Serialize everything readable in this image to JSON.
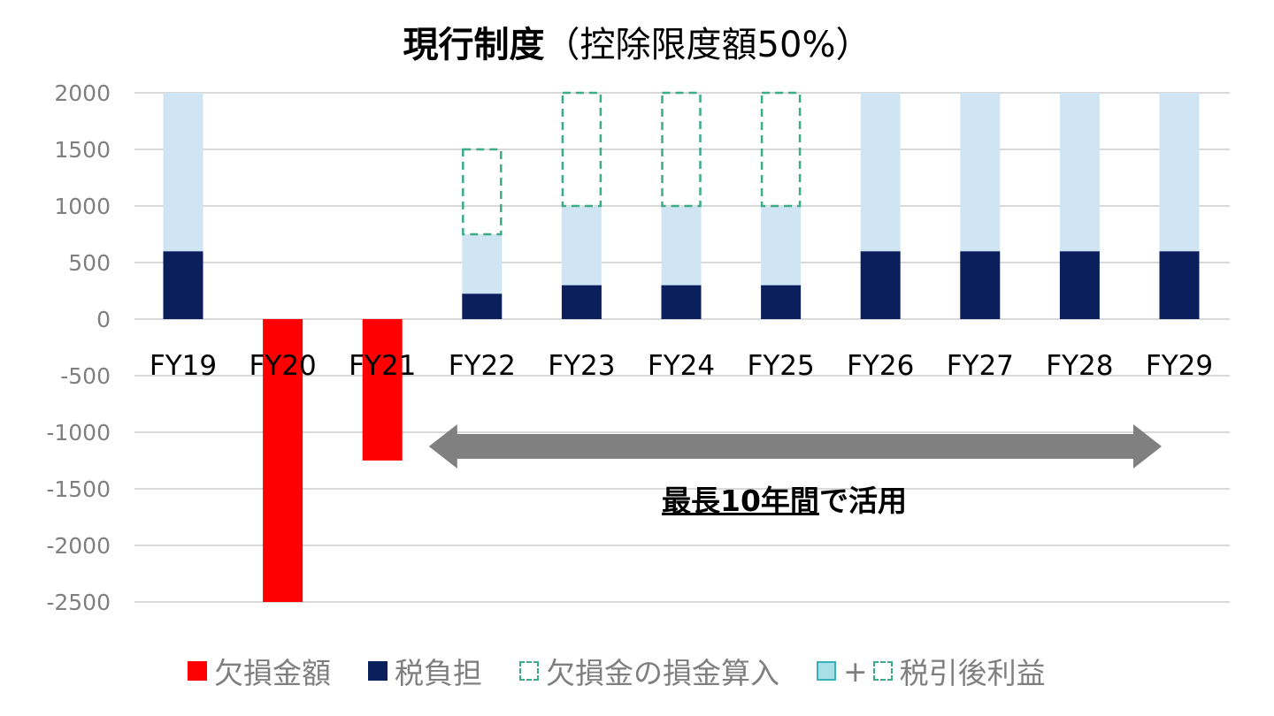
{
  "title": {
    "bold": "現行制度",
    "rest": "（控除限度額50%）"
  },
  "annotation": {
    "underlined": "最長10年間",
    "rest": "で活用"
  },
  "colors": {
    "loss": "#ff0000",
    "tax": "#0a1f5c",
    "profit": "#d0e5f4",
    "deduction_border": "#3bab8a",
    "legend_profit": "#a8dfe6",
    "arrow": "#808080",
    "grid": "#d9d9d9"
  },
  "legend": [
    {
      "label": "欠損金額",
      "marker": "loss"
    },
    {
      "label": "税負担",
      "marker": "tax"
    },
    {
      "label": "欠損金の損金算入",
      "marker": "deduction"
    },
    {
      "label": "税引後利益",
      "marker": "profit-plus-deduction",
      "plus": "+"
    }
  ],
  "chart_data": {
    "type": "bar",
    "stacked": true,
    "categories": [
      "FY19",
      "FY20",
      "FY21",
      "FY22",
      "FY23",
      "FY24",
      "FY25",
      "FY26",
      "FY27",
      "FY28",
      "FY29"
    ],
    "series": [
      {
        "name": "欠損金額",
        "values": [
          0,
          -2500,
          -1250,
          0,
          0,
          0,
          0,
          0,
          0,
          0,
          0
        ]
      },
      {
        "name": "税負担",
        "values": [
          600,
          0,
          0,
          225,
          300,
          300,
          300,
          600,
          600,
          600,
          600
        ]
      },
      {
        "name": "税引後利益",
        "values": [
          1400,
          0,
          0,
          525,
          700,
          700,
          700,
          1400,
          1400,
          1400,
          1400
        ]
      },
      {
        "name": "欠損金の損金算入",
        "values": [
          0,
          0,
          0,
          750,
          1000,
          1000,
          1000,
          0,
          0,
          0,
          0
        ]
      }
    ],
    "ylim": [
      -2500,
      2000
    ],
    "yticks": [
      2000,
      1500,
      1000,
      500,
      0,
      -500,
      -1000,
      -1500,
      -2000,
      -2500
    ],
    "grid": true,
    "legend_position": "bottom",
    "arrow_span": [
      "FY22",
      "FY29"
    ]
  }
}
